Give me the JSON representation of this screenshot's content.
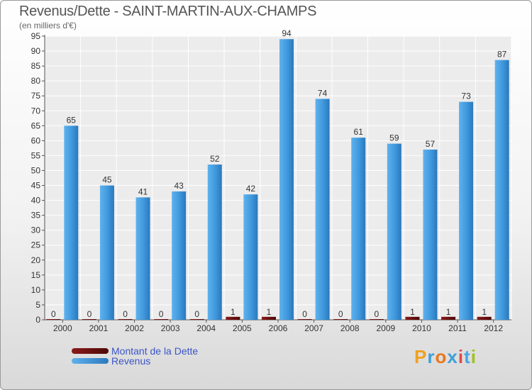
{
  "title": "Revenus/Dette - SAINT-MARTIN-AUX-CHAMPS",
  "subtitle": "(en milliers d'€)",
  "chart_data": {
    "type": "bar",
    "title": "Revenus/Dette - SAINT-MARTIN-AUX-CHAMPS",
    "ylabel": "(en milliers d'€)",
    "xlabel": "",
    "ylim": [
      0,
      95
    ],
    "ytick_step": 5,
    "grid": true,
    "categories": [
      "2000",
      "2001",
      "2002",
      "2003",
      "2004",
      "2005",
      "2006",
      "2007",
      "2008",
      "2009",
      "2010",
      "2011",
      "2012"
    ],
    "series": [
      {
        "name": "Montant de la Dette",
        "color": "#6b0f0f",
        "values": [
          0,
          0,
          0,
          0,
          0,
          1,
          1,
          0,
          0,
          0,
          1,
          1,
          1
        ]
      },
      {
        "name": "Revenus",
        "color": "#3f98dc",
        "values": [
          65,
          45,
          41,
          43,
          52,
          42,
          94,
          74,
          61,
          59,
          57,
          73,
          87
        ]
      }
    ],
    "legend_position": "bottom-left"
  },
  "legend": [
    {
      "label": "Montant de la Dette",
      "color": "#6b0f0f"
    },
    {
      "label": "Revenus",
      "color": "#3f98dc"
    }
  ],
  "logo": {
    "letters": [
      "P",
      "r",
      "o",
      "x",
      "i",
      "t",
      "i"
    ],
    "colors": [
      "#f0a020",
      "#3fa0d8",
      "#e8781e",
      "#3fa0d8",
      "#e04848",
      "#48a8e0",
      "#a0c020"
    ]
  }
}
